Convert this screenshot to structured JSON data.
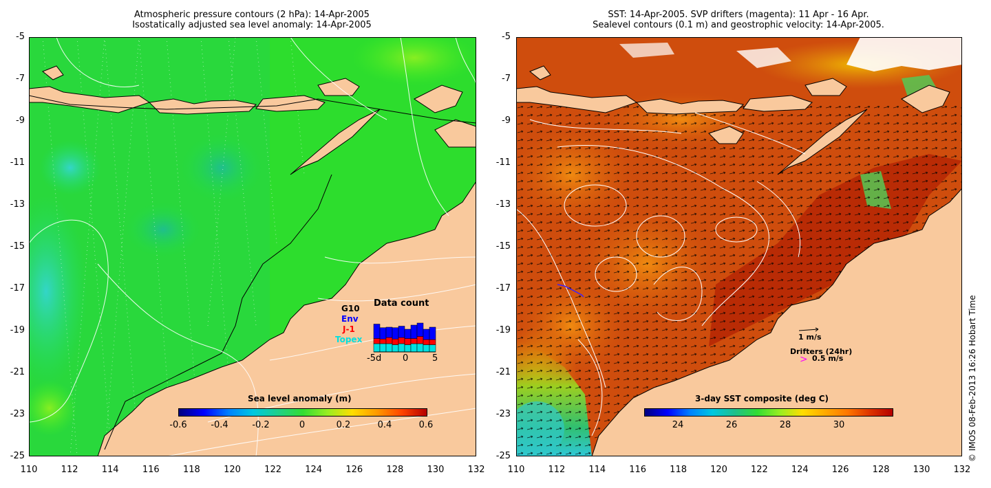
{
  "left_panel": {
    "title_line1": "Atmospheric pressure contours (2 hPa): 14-Apr-2005",
    "title_line2": "Isostatically adjusted sea level anomaly: 14-Apr-2005",
    "colorbar_label": "Sea level anomaly (m)",
    "colorbar_ticks": [
      "-0.6",
      "-0.4",
      "-0.2",
      "0",
      "0.2",
      "0.4",
      "0.6"
    ],
    "data_count": {
      "title": "Data count",
      "satellites": [
        "G10",
        "Env",
        "J-1",
        "Topex"
      ],
      "satellite_colors": [
        "#000000",
        "#0000ff",
        "#ff0000",
        "#00e0e0"
      ],
      "x_ticks": [
        "-5d",
        "0",
        "5"
      ]
    }
  },
  "right_panel": {
    "title_line1": "SST: 14-Apr-2005. SVP drifters (magenta): 11 Apr - 16 Apr.",
    "title_line2": "Sealevel contours (0.1 m) and geostrophic velocity: 14-Apr-2005.",
    "colorbar_label": "3-day SST composite (deg C)",
    "colorbar_ticks": [
      "24",
      "26",
      "28",
      "30"
    ],
    "velocity_scale": "1 m/s",
    "drifters_label": "Drifters (24hr)",
    "drifters_scale": "0.5 m/s"
  },
  "y_ticks": [
    "-5",
    "-7",
    "-9",
    "-11",
    "-13",
    "-15",
    "-17",
    "-19",
    "-21",
    "-23",
    "-25"
  ],
  "x_ticks": [
    "110",
    "112",
    "114",
    "116",
    "118",
    "120",
    "122",
    "124",
    "126",
    "128",
    "130",
    "132"
  ],
  "credit": "© IMOS 08-Feb-2013 16:26 Hobart Time",
  "colors": {
    "land": "#f9c99d",
    "sla_ocean": "#22dd22",
    "sst_ocean": "#c83a0a"
  }
}
